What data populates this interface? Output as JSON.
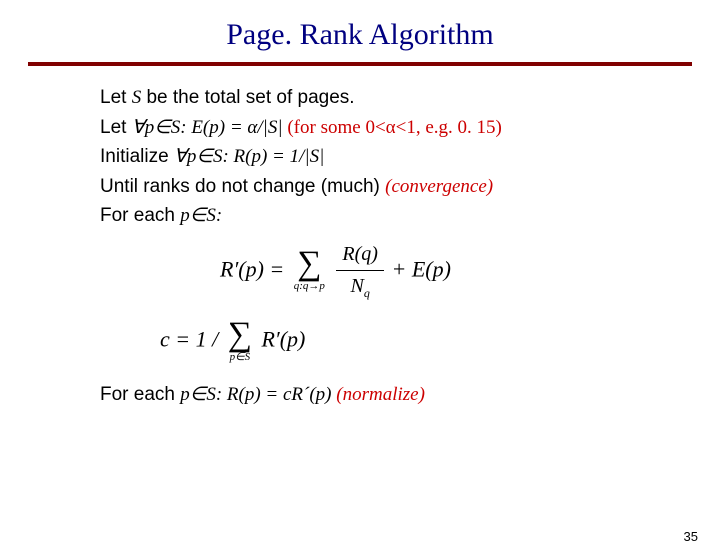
{
  "title": "Page. Rank Algorithm",
  "lines": {
    "l1_a": "Let ",
    "l1_b": "S",
    "l1_c": " be the total set of pages.",
    "l2_a": "Let ",
    "l2_b": "∀p∈S: E(p) = α/|S|",
    "l2_c": "  (for some 0<α<1, e.g. 0. 15)",
    "l3_a": "Initialize ",
    "l3_b": "∀p∈S: R(p) = 1/|S|",
    "l4_a": "Until ranks do not change (much) ",
    "l4_b": "(convergence)",
    "l5_a": "For each ",
    "l5_b": "p∈S:",
    "l6_a": "For each ",
    "l6_b": "p∈S: R(p) = cR´(p)",
    "l6_c": "  (normalize)"
  },
  "eq1": {
    "lhs": "R′(p) = ",
    "sub": "q:q→p",
    "num": "R(q)",
    "den_a": "N",
    "den_sub": "q",
    "tail": " + E(p)"
  },
  "eq2": {
    "lhs": "c = 1 / ",
    "sub": "p∈S",
    "arg": "R′(p)"
  },
  "pagenum": "35",
  "colors": {
    "title": "#000080",
    "rule": "#800000",
    "red": "#cc0000",
    "text": "#000000",
    "background": "#ffffff"
  }
}
